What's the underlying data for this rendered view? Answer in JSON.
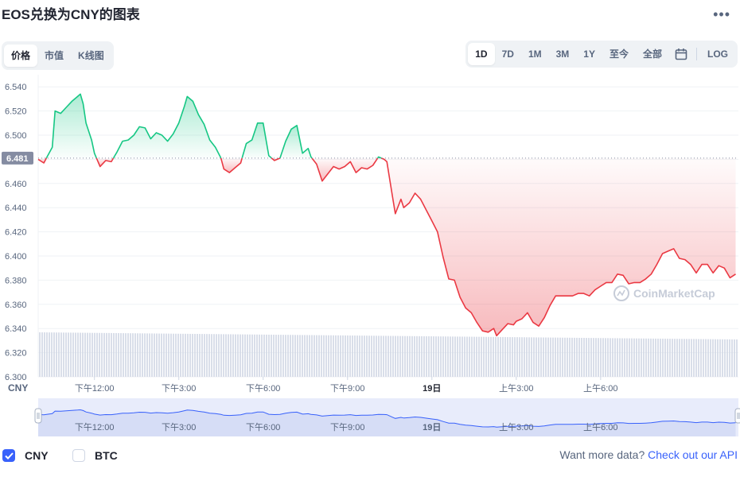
{
  "title": "EOS兑换为CNY的图表",
  "more_icon": "more-horizontal-icon",
  "view_tabs": [
    {
      "label": "价格",
      "active": true
    },
    {
      "label": "市值",
      "active": false
    },
    {
      "label": "K线图",
      "active": false
    }
  ],
  "range_tabs": [
    {
      "label": "1D",
      "active": true
    },
    {
      "label": "7D",
      "active": false
    },
    {
      "label": "1M",
      "active": false
    },
    {
      "label": "3M",
      "active": false
    },
    {
      "label": "1Y",
      "active": false
    },
    {
      "label": "至今",
      "active": false
    },
    {
      "label": "全部",
      "active": false
    }
  ],
  "calendar_icon": "calendar-icon",
  "log_label": "LOG",
  "watermark": "CoinMarketCap",
  "currency_label": "CNY",
  "footer": {
    "cny_label": "CNY",
    "btc_label": "BTC",
    "more_data_text": "Want more data?",
    "api_link": "Check out our API"
  },
  "colors": {
    "up": "#16c784",
    "down": "#ea3943",
    "brand": "#3861fb",
    "volume": "#cfd6e4",
    "grid": "#eff2f5"
  },
  "chart_data": {
    "type": "line",
    "title": "",
    "reference_price": 6.481,
    "reference_label": "6.481",
    "ylim": [
      6.3,
      6.55
    ],
    "y_ticks": [
      6.3,
      6.32,
      6.34,
      6.36,
      6.38,
      6.4,
      6.42,
      6.44,
      6.46,
      6.48,
      6.5,
      6.52,
      6.54
    ],
    "y_tick_labels": [
      "6.300",
      "6.320",
      "6.340",
      "6.360",
      "6.380",
      "6.400",
      "6.420",
      "6.440",
      "6.460",
      "6.480",
      "6.500",
      "6.520",
      "6.540"
    ],
    "x_domain_hours": [
      10.0,
      34.9
    ],
    "x_ticks": [
      {
        "t": 12,
        "label": "下午12:00"
      },
      {
        "t": 15,
        "label": "下午3:00"
      },
      {
        "t": 18,
        "label": "下午6:00"
      },
      {
        "t": 21,
        "label": "下午9:00"
      },
      {
        "t": 24,
        "label": "19日"
      },
      {
        "t": 27,
        "label": "上午3:00"
      },
      {
        "t": 30,
        "label": "上午6:00"
      }
    ],
    "series": [
      {
        "name": "CNY",
        "points": [
          [
            10.0,
            6.48
          ],
          [
            10.2,
            6.477
          ],
          [
            10.5,
            6.49
          ],
          [
            10.6,
            6.52
          ],
          [
            10.8,
            6.518
          ],
          [
            11.0,
            6.523
          ],
          [
            11.2,
            6.528
          ],
          [
            11.4,
            6.532
          ],
          [
            11.5,
            6.534
          ],
          [
            11.6,
            6.526
          ],
          [
            11.7,
            6.51
          ],
          [
            11.9,
            6.496
          ],
          [
            12.0,
            6.485
          ],
          [
            12.2,
            6.474
          ],
          [
            12.4,
            6.479
          ],
          [
            12.6,
            6.478
          ],
          [
            12.8,
            6.486
          ],
          [
            13.0,
            6.495
          ],
          [
            13.2,
            6.496
          ],
          [
            13.4,
            6.5
          ],
          [
            13.6,
            6.507
          ],
          [
            13.8,
            6.506
          ],
          [
            14.0,
            6.497
          ],
          [
            14.2,
            6.502
          ],
          [
            14.4,
            6.5
          ],
          [
            14.6,
            6.495
          ],
          [
            14.8,
            6.501
          ],
          [
            15.0,
            6.51
          ],
          [
            15.2,
            6.524
          ],
          [
            15.3,
            6.532
          ],
          [
            15.5,
            6.528
          ],
          [
            15.7,
            6.517
          ],
          [
            15.9,
            6.509
          ],
          [
            16.1,
            6.496
          ],
          [
            16.3,
            6.49
          ],
          [
            16.5,
            6.481
          ],
          [
            16.6,
            6.472
          ],
          [
            16.8,
            6.469
          ],
          [
            17.0,
            6.473
          ],
          [
            17.2,
            6.477
          ],
          [
            17.4,
            6.493
          ],
          [
            17.6,
            6.496
          ],
          [
            17.8,
            6.51
          ],
          [
            18.0,
            6.51
          ],
          [
            18.2,
            6.483
          ],
          [
            18.4,
            6.479
          ],
          [
            18.6,
            6.481
          ],
          [
            18.8,
            6.495
          ],
          [
            19.0,
            6.505
          ],
          [
            19.2,
            6.508
          ],
          [
            19.4,
            6.485
          ],
          [
            19.6,
            6.489
          ],
          [
            19.7,
            6.482
          ],
          [
            19.9,
            6.476
          ],
          [
            20.1,
            6.462
          ],
          [
            20.3,
            6.468
          ],
          [
            20.5,
            6.474
          ],
          [
            20.7,
            6.472
          ],
          [
            20.9,
            6.474
          ],
          [
            21.1,
            6.478
          ],
          [
            21.3,
            6.469
          ],
          [
            21.5,
            6.473
          ],
          [
            21.7,
            6.472
          ],
          [
            21.9,
            6.475
          ],
          [
            22.1,
            6.482
          ],
          [
            22.3,
            6.48
          ],
          [
            22.4,
            6.478
          ],
          [
            22.6,
            6.449
          ],
          [
            22.7,
            6.435
          ],
          [
            22.9,
            6.447
          ],
          [
            23.0,
            6.44
          ],
          [
            23.2,
            6.444
          ],
          [
            23.4,
            6.452
          ],
          [
            23.6,
            6.447
          ],
          [
            23.8,
            6.438
          ],
          [
            24.0,
            6.429
          ],
          [
            24.2,
            6.42
          ],
          [
            24.4,
            6.399
          ],
          [
            24.6,
            6.381
          ],
          [
            24.8,
            6.38
          ],
          [
            25.0,
            6.366
          ],
          [
            25.2,
            6.357
          ],
          [
            25.4,
            6.353
          ],
          [
            25.6,
            6.345
          ],
          [
            25.8,
            6.338
          ],
          [
            26.0,
            6.337
          ],
          [
            26.2,
            6.34
          ],
          [
            26.3,
            6.334
          ],
          [
            26.5,
            6.339
          ],
          [
            26.7,
            6.344
          ],
          [
            26.9,
            6.343
          ],
          [
            27.0,
            6.346
          ],
          [
            27.2,
            6.348
          ],
          [
            27.4,
            6.353
          ],
          [
            27.6,
            6.345
          ],
          [
            27.8,
            6.342
          ],
          [
            28.0,
            6.349
          ],
          [
            28.2,
            6.359
          ],
          [
            28.4,
            6.367
          ],
          [
            28.6,
            6.367
          ],
          [
            28.8,
            6.367
          ],
          [
            29.0,
            6.367
          ],
          [
            29.2,
            6.369
          ],
          [
            29.4,
            6.369
          ],
          [
            29.6,
            6.367
          ],
          [
            29.8,
            6.372
          ],
          [
            30.0,
            6.375
          ],
          [
            30.2,
            6.378
          ],
          [
            30.4,
            6.378
          ],
          [
            30.6,
            6.385
          ],
          [
            30.8,
            6.384
          ],
          [
            31.0,
            6.377
          ],
          [
            31.2,
            6.378
          ],
          [
            31.4,
            6.378
          ],
          [
            31.6,
            6.381
          ],
          [
            31.8,
            6.385
          ],
          [
            32.0,
            6.393
          ],
          [
            32.2,
            6.402
          ],
          [
            32.4,
            6.404
          ],
          [
            32.6,
            6.406
          ],
          [
            32.8,
            6.398
          ],
          [
            33.0,
            6.397
          ],
          [
            33.2,
            6.393
          ],
          [
            33.4,
            6.386
          ],
          [
            33.6,
            6.393
          ],
          [
            33.8,
            6.393
          ],
          [
            34.0,
            6.386
          ],
          [
            34.2,
            6.392
          ],
          [
            34.4,
            6.39
          ],
          [
            34.6,
            6.382
          ],
          [
            34.8,
            6.385
          ]
        ]
      }
    ]
  }
}
